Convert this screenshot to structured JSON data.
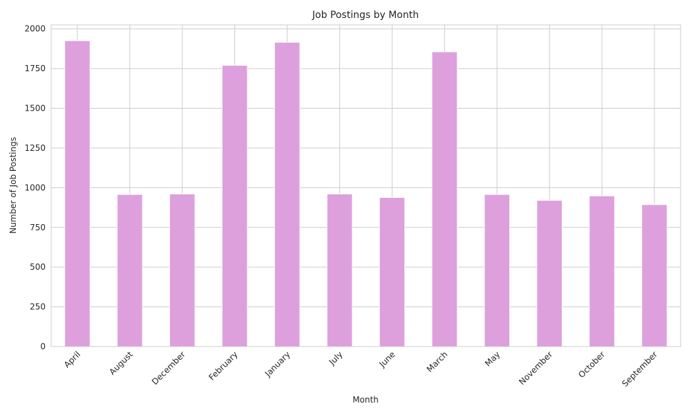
{
  "chart_data": {
    "type": "bar",
    "title": "Job Postings by Month",
    "xlabel": "Month",
    "ylabel": "Number of Job Postings",
    "categories": [
      "April",
      "August",
      "December",
      "February",
      "January",
      "July",
      "June",
      "March",
      "May",
      "November",
      "October",
      "September"
    ],
    "values": [
      1925,
      957,
      960,
      1770,
      1915,
      960,
      938,
      1855,
      957,
      920,
      948,
      893
    ],
    "ylim": [
      0,
      2025
    ],
    "yticks": [
      0,
      250,
      500,
      750,
      1000,
      1250,
      1500,
      1750,
      2000
    ],
    "bar_color": "#dda0dd",
    "grid": true,
    "legend": "none"
  }
}
